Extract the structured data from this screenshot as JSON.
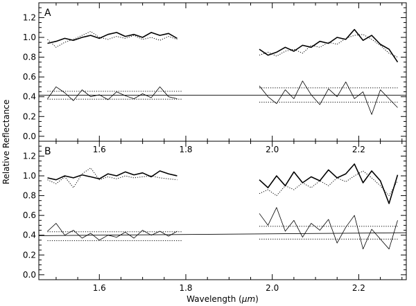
{
  "chart_data": {
    "type": "line",
    "xlabel_prefix": "Wavelength (",
    "xlabel_unit": "μm",
    "xlabel_suffix": ")",
    "ylabel": "Relative Reflectance",
    "xlim": [
      1.46,
      2.31
    ],
    "ylim": [
      -0.05,
      1.35
    ],
    "xticks": [
      1.6,
      1.8,
      2.0,
      2.2
    ],
    "xtick_labels": [
      "1.6",
      "1.8",
      "2.0",
      "2.2"
    ],
    "yticks": [
      0.0,
      0.2,
      0.4,
      0.6,
      0.8,
      1.0,
      1.2
    ],
    "ytick_labels": [
      "0.0",
      "0.2",
      "0.4",
      "0.6",
      "0.8",
      "1.0",
      "1.2"
    ],
    "panels": [
      {
        "label": "A",
        "fit_line": [
          [
            1.46,
            0.415
          ],
          [
            2.31,
            0.415
          ]
        ],
        "residual_bounds": {
          "segment1": {
            "x": [
              1.48,
              1.79
            ],
            "lower": 0.375,
            "upper": 0.455
          },
          "segment2": {
            "x": [
              1.97,
              2.29
            ],
            "lower": 0.345,
            "upper": 0.49
          }
        },
        "series": [
          {
            "style": "thick-solid",
            "segments": [
              {
                "x": [
                  1.48,
                  1.5,
                  1.52,
                  1.54,
                  1.56,
                  1.58,
                  1.6,
                  1.62,
                  1.64,
                  1.66,
                  1.68,
                  1.7,
                  1.72,
                  1.74,
                  1.76,
                  1.78
                ],
                "y": [
                  0.94,
                  0.96,
                  0.99,
                  0.97,
                  1.0,
                  1.02,
                  0.99,
                  1.03,
                  1.05,
                  1.01,
                  1.03,
                  1.0,
                  1.05,
                  1.02,
                  1.04,
                  0.99
                ]
              },
              {
                "x": [
                  1.97,
                  1.99,
                  2.01,
                  2.03,
                  2.05,
                  2.07,
                  2.09,
                  2.11,
                  2.13,
                  2.15,
                  2.17,
                  2.19,
                  2.21,
                  2.23,
                  2.25,
                  2.27,
                  2.29
                ],
                "y": [
                  0.88,
                  0.82,
                  0.85,
                  0.9,
                  0.86,
                  0.92,
                  0.9,
                  0.96,
                  0.94,
                  1.0,
                  0.98,
                  1.08,
                  0.97,
                  1.02,
                  0.93,
                  0.88,
                  0.75
                ]
              }
            ]
          },
          {
            "style": "dotted",
            "segments": [
              {
                "x": [
                  1.48,
                  1.5,
                  1.52,
                  1.54,
                  1.56,
                  1.58,
                  1.6,
                  1.62,
                  1.64,
                  1.66,
                  1.68,
                  1.7,
                  1.72,
                  1.74,
                  1.76,
                  1.78
                ],
                "y": [
                  0.98,
                  0.9,
                  0.95,
                  0.98,
                  1.02,
                  1.06,
                  1.0,
                  0.98,
                  1.01,
                  0.99,
                  1.02,
                  0.98,
                  1.0,
                  0.97,
                  1.01,
                  0.98
                ]
              },
              {
                "x": [
                  1.97,
                  1.99,
                  2.01,
                  2.03,
                  2.05,
                  2.07,
                  2.09,
                  2.11,
                  2.13,
                  2.15,
                  2.17,
                  2.19,
                  2.21,
                  2.23,
                  2.25,
                  2.27,
                  2.29
                ],
                "y": [
                  0.82,
                  0.85,
                  0.81,
                  0.86,
                  0.88,
                  0.84,
                  0.92,
                  0.9,
                  0.95,
                  0.93,
                  0.99,
                  1.02,
                  1.03,
                  0.98,
                  0.92,
                  0.84,
                  0.8
                ]
              }
            ]
          },
          {
            "style": "thin-solid",
            "segments": [
              {
                "x": [
                  1.48,
                  1.5,
                  1.52,
                  1.54,
                  1.56,
                  1.58,
                  1.6,
                  1.62,
                  1.64,
                  1.66,
                  1.68,
                  1.7,
                  1.72,
                  1.74,
                  1.76,
                  1.78
                ],
                "y": [
                  0.38,
                  0.5,
                  0.44,
                  0.36,
                  0.47,
                  0.4,
                  0.42,
                  0.37,
                  0.45,
                  0.41,
                  0.38,
                  0.43,
                  0.39,
                  0.5,
                  0.4,
                  0.38
                ]
              },
              {
                "x": [
                  1.97,
                  1.99,
                  2.01,
                  2.03,
                  2.05,
                  2.07,
                  2.09,
                  2.11,
                  2.13,
                  2.15,
                  2.17,
                  2.19,
                  2.21,
                  2.23,
                  2.25,
                  2.27,
                  2.29
                ],
                "y": [
                  0.51,
                  0.4,
                  0.33,
                  0.47,
                  0.38,
                  0.56,
                  0.42,
                  0.32,
                  0.48,
                  0.4,
                  0.55,
                  0.38,
                  0.45,
                  0.22,
                  0.47,
                  0.38,
                  0.29
                ]
              }
            ]
          }
        ]
      },
      {
        "label": "B",
        "fit_line": [
          [
            1.46,
            0.395
          ],
          [
            2.31,
            0.425
          ]
        ],
        "residual_bounds": {
          "segment1": {
            "x": [
              1.48,
              1.79
            ],
            "lower": 0.345,
            "upper": 0.435
          },
          "segment2": {
            "x": [
              1.97,
              2.29
            ],
            "lower": 0.36,
            "upper": 0.49
          }
        },
        "series": [
          {
            "style": "thick-solid",
            "segments": [
              {
                "x": [
                  1.48,
                  1.5,
                  1.52,
                  1.54,
                  1.56,
                  1.58,
                  1.6,
                  1.62,
                  1.64,
                  1.66,
                  1.68,
                  1.7,
                  1.72,
                  1.74,
                  1.76,
                  1.78
                ],
                "y": [
                  0.98,
                  0.96,
                  1.0,
                  0.98,
                  1.01,
                  0.99,
                  0.97,
                  1.02,
                  1.0,
                  1.04,
                  1.01,
                  1.03,
                  0.99,
                  1.05,
                  1.02,
                  1.0
                ]
              },
              {
                "x": [
                  1.97,
                  1.99,
                  2.01,
                  2.03,
                  2.05,
                  2.07,
                  2.09,
                  2.11,
                  2.13,
                  2.15,
                  2.17,
                  2.19,
                  2.21,
                  2.23,
                  2.25,
                  2.27,
                  2.29
                ],
                "y": [
                  0.96,
                  0.88,
                  1.0,
                  0.9,
                  1.04,
                  0.93,
                  0.99,
                  0.95,
                  1.06,
                  0.98,
                  1.02,
                  1.12,
                  0.93,
                  1.05,
                  0.95,
                  0.72,
                  1.01
                ]
              }
            ]
          },
          {
            "style": "dotted",
            "segments": [
              {
                "x": [
                  1.48,
                  1.5,
                  1.52,
                  1.54,
                  1.56,
                  1.58,
                  1.6,
                  1.62,
                  1.64,
                  1.66,
                  1.68,
                  1.7,
                  1.72,
                  1.74,
                  1.76,
                  1.78
                ],
                "y": [
                  0.96,
                  0.92,
                  0.99,
                  0.88,
                  1.02,
                  1.08,
                  0.96,
                  0.99,
                  0.97,
                  1.0,
                  0.98,
                  0.99,
                  1.0,
                  0.98,
                  0.97,
                  0.96
                ]
              },
              {
                "x": [
                  1.97,
                  1.99,
                  2.01,
                  2.03,
                  2.05,
                  2.07,
                  2.09,
                  2.11,
                  2.13,
                  2.15,
                  2.17,
                  2.19,
                  2.21,
                  2.23,
                  2.25,
                  2.27,
                  2.29
                ],
                "y": [
                  0.82,
                  0.86,
                  0.8,
                  0.9,
                  0.86,
                  0.93,
                  0.88,
                  0.95,
                  0.9,
                  0.98,
                  0.94,
                  1.0,
                  1.05,
                  0.98,
                  0.9,
                  0.8,
                  0.95
                ]
              }
            ]
          },
          {
            "style": "thin-solid",
            "segments": [
              {
                "x": [
                  1.48,
                  1.5,
                  1.52,
                  1.54,
                  1.56,
                  1.58,
                  1.6,
                  1.62,
                  1.64,
                  1.66,
                  1.68,
                  1.7,
                  1.72,
                  1.74,
                  1.76,
                  1.78
                ],
                "y": [
                  0.44,
                  0.52,
                  0.4,
                  0.45,
                  0.37,
                  0.42,
                  0.35,
                  0.4,
                  0.38,
                  0.43,
                  0.37,
                  0.45,
                  0.4,
                  0.44,
                  0.39,
                  0.44
                ]
              },
              {
                "x": [
                  1.97,
                  1.99,
                  2.01,
                  2.03,
                  2.05,
                  2.07,
                  2.09,
                  2.11,
                  2.13,
                  2.15,
                  2.17,
                  2.19,
                  2.21,
                  2.23,
                  2.25,
                  2.27,
                  2.29
                ],
                "y": [
                  0.62,
                  0.5,
                  0.68,
                  0.44,
                  0.55,
                  0.38,
                  0.52,
                  0.45,
                  0.56,
                  0.32,
                  0.48,
                  0.6,
                  0.26,
                  0.46,
                  0.36,
                  0.26,
                  0.55
                ]
              }
            ]
          }
        ]
      }
    ]
  }
}
